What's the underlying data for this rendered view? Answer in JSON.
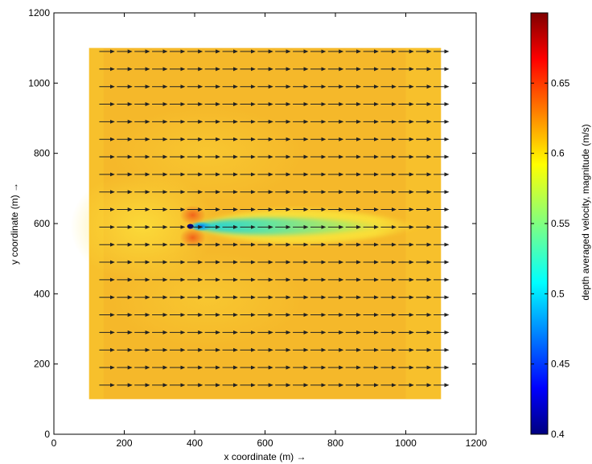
{
  "chart_data": {
    "type": "heatmap",
    "title": "",
    "xlabel": "x coordinate (m) →",
    "ylabel": "y coordinate (m) →",
    "xlim": [
      0,
      1200
    ],
    "ylim": [
      0,
      1200
    ],
    "xticks": [
      0,
      200,
      400,
      600,
      800,
      1000,
      1200
    ],
    "yticks": [
      0,
      200,
      400,
      600,
      800,
      1000,
      1200
    ],
    "domain": {
      "x": [
        100,
        1100
      ],
      "y": [
        100,
        1100
      ]
    },
    "background_velocity": 0.605,
    "obstacle": {
      "x": 390,
      "y": 592
    },
    "wake": {
      "x_start": 395,
      "x_end": 1000,
      "y": 592,
      "min_velocity": 0.5,
      "plateau_velocity": 0.56
    },
    "quiver": {
      "x": [
        150,
        200,
        250,
        300,
        350,
        400,
        450,
        500,
        550,
        600,
        650,
        700,
        750,
        800,
        850,
        900,
        950,
        1000,
        1050,
        1100
      ],
      "y": [
        140,
        190,
        240,
        290,
        340,
        390,
        440,
        490,
        540,
        590,
        640,
        690,
        740,
        790,
        840,
        890,
        940,
        990,
        1040,
        1090
      ],
      "direction": "+x"
    },
    "colorbar": {
      "label": "depth averaged velocity, magnitude (m/s)",
      "range": [
        0.4,
        0.7
      ],
      "ticks": [
        0.4,
        0.45,
        0.5,
        0.55,
        0.6,
        0.65
      ],
      "tick_labels": [
        "0.4",
        "0.45",
        "0.5",
        "0.55",
        "0.6",
        "0.65"
      ],
      "colormap": "jet"
    },
    "grid": false,
    "legend": "none"
  },
  "colors": {
    "field": "#f5b82a",
    "field_light": "#fbcd30",
    "wake_low": "#18d6d0",
    "wake_mid": "#8fe46a",
    "obstacle_core": "#00007f",
    "near_obstacle": "#f07d18",
    "arrow": "#222222"
  }
}
